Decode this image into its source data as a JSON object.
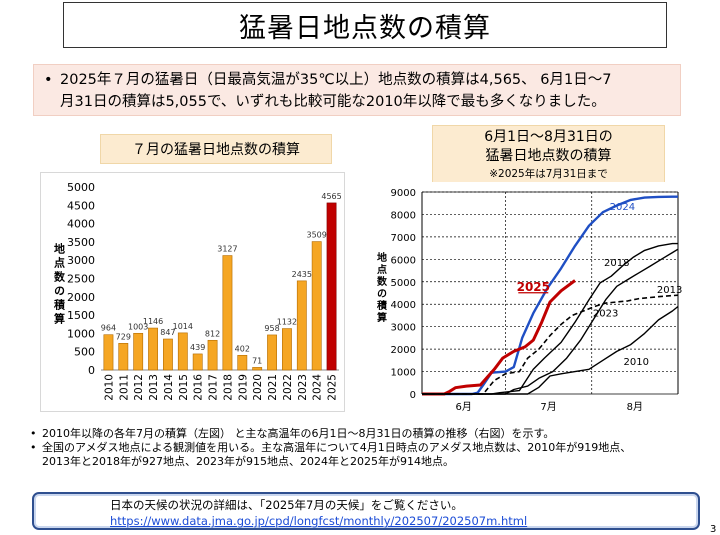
{
  "title": "猛暑日地点数の積算",
  "summary": {
    "bullet": "•",
    "line1": "2025年７月の猛暑日（日最高気温が35℃以上）地点数の積算は4,565、 6月1日～7",
    "line2": "月31日の積算は5,055で、いずれも比較可能な2010年以降で最も多くなりました。"
  },
  "left_title": "７月の猛暑日地点数の積算",
  "right_title": {
    "line1": "6月1日～8月31日の",
    "line2": "猛暑日地点数の積算",
    "note": "※2025年は7月31日まで"
  },
  "colors": {
    "bar": "#f5a623",
    "bar_2025": "#c00000",
    "line_2024": "#1f4fc4",
    "line_2025": "#c00000",
    "line_other": "#000000"
  },
  "chart_data": [
    {
      "type": "bar",
      "ylabel": "地点数の積算",
      "ylim": [
        0,
        5000
      ],
      "yticks": [
        "0",
        "500",
        "1000",
        "1500",
        "2000",
        "2500",
        "3000",
        "3500",
        "4000",
        "4500",
        "5000"
      ],
      "categories": [
        "2010",
        "2011",
        "2012",
        "2013",
        "2014",
        "2015",
        "2016",
        "2017",
        "2018",
        "2019",
        "2020",
        "2021",
        "2022",
        "2023",
        "2024",
        "2025"
      ],
      "values": [
        964,
        729,
        1003,
        1146,
        847,
        1014,
        439,
        812,
        3127,
        402,
        71,
        958,
        1132,
        2435,
        3509,
        4565
      ],
      "labels": [
        "964",
        "729",
        "1003",
        "1146",
        "847",
        "1014",
        "439",
        "812",
        "3127",
        "402",
        "71",
        "958",
        "1132",
        "2435",
        "3509",
        "4565"
      ]
    },
    {
      "type": "line",
      "ylabel": "地点数の積算",
      "ylim": [
        0,
        9000
      ],
      "yticks": [
        "0",
        "1000",
        "2000",
        "3000",
        "4000",
        "5000",
        "6000",
        "7000",
        "8000",
        "9000"
      ],
      "xticks": [
        "6月",
        "7月",
        "8月"
      ],
      "xlim": [
        0,
        92
      ],
      "series": [
        {
          "name": "2024",
          "style": "solid-blue",
          "points": [
            [
              0,
              0
            ],
            [
              18,
              0
            ],
            [
              20,
              60
            ],
            [
              22,
              400
            ],
            [
              25,
              950
            ],
            [
              30,
              1000
            ],
            [
              33,
              1200
            ],
            [
              36,
              2500
            ],
            [
              40,
              3600
            ],
            [
              45,
              4700
            ],
            [
              50,
              5600
            ],
            [
              55,
              6600
            ],
            [
              60,
              7500
            ],
            [
              65,
              8100
            ],
            [
              70,
              8400
            ],
            [
              75,
              8650
            ],
            [
              80,
              8750
            ],
            [
              85,
              8780
            ],
            [
              90,
              8790
            ],
            [
              92,
              8790
            ]
          ]
        },
        {
          "name": "2025",
          "style": "thick-red",
          "points": [
            [
              0,
              0
            ],
            [
              8,
              0
            ],
            [
              10,
              120
            ],
            [
              12,
              280
            ],
            [
              16,
              350
            ],
            [
              21,
              400
            ],
            [
              26,
              1100
            ],
            [
              29,
              1600
            ],
            [
              33,
              1900
            ],
            [
              37,
              2100
            ],
            [
              40,
              2400
            ],
            [
              43,
              3200
            ],
            [
              46,
              4100
            ],
            [
              50,
              4600
            ],
            [
              55,
              5055
            ]
          ]
        },
        {
          "name": "2018",
          "style": "solid-black",
          "points": [
            [
              0,
              0
            ],
            [
              25,
              0
            ],
            [
              28,
              60
            ],
            [
              35,
              150
            ],
            [
              40,
              1100
            ],
            [
              44,
              1600
            ],
            [
              50,
              2300
            ],
            [
              55,
              3200
            ],
            [
              60,
              4200
            ],
            [
              64,
              4950
            ],
            [
              68,
              5250
            ],
            [
              72,
              5700
            ],
            [
              76,
              6100
            ],
            [
              80,
              6400
            ],
            [
              85,
              6600
            ],
            [
              90,
              6700
            ],
            [
              92,
              6700
            ]
          ]
        },
        {
          "name": "2013",
          "style": "dashed-black",
          "points": [
            [
              0,
              0
            ],
            [
              22,
              0
            ],
            [
              26,
              600
            ],
            [
              30,
              900
            ],
            [
              35,
              1000
            ],
            [
              38,
              1600
            ],
            [
              42,
              2000
            ],
            [
              46,
              2600
            ],
            [
              50,
              3100
            ],
            [
              54,
              3500
            ],
            [
              58,
              3700
            ],
            [
              62,
              3900
            ],
            [
              66,
              4050
            ],
            [
              70,
              4100
            ],
            [
              74,
              4150
            ],
            [
              78,
              4250
            ],
            [
              82,
              4300
            ],
            [
              86,
              4350
            ],
            [
              92,
              4400
            ]
          ]
        },
        {
          "name": "2023",
          "style": "solid-black",
          "points": [
            [
              0,
              0
            ],
            [
              30,
              0
            ],
            [
              33,
              200
            ],
            [
              38,
              350
            ],
            [
              42,
              700
            ],
            [
              47,
              1000
            ],
            [
              52,
              1600
            ],
            [
              57,
              2400
            ],
            [
              62,
              3400
            ],
            [
              66,
              4200
            ],
            [
              70,
              4800
            ],
            [
              74,
              5100
            ],
            [
              78,
              5400
            ],
            [
              82,
              5700
            ],
            [
              86,
              6000
            ],
            [
              90,
              6300
            ],
            [
              92,
              6450
            ]
          ]
        },
        {
          "name": "2010",
          "style": "solid-black",
          "points": [
            [
              0,
              0
            ],
            [
              38,
              0
            ],
            [
              42,
              300
            ],
            [
              46,
              800
            ],
            [
              50,
              900
            ],
            [
              55,
              1000
            ],
            [
              60,
              1100
            ],
            [
              65,
              1500
            ],
            [
              70,
              1900
            ],
            [
              75,
              2200
            ],
            [
              80,
              2700
            ],
            [
              85,
              3300
            ],
            [
              90,
              3700
            ],
            [
              92,
              3900
            ]
          ]
        }
      ],
      "series_label_color": {
        "2024": "#1f4fc4",
        "2025": "#c00000"
      }
    }
  ],
  "notes": [
    "2010年以降の各年7月の積算（左図） と主な高温年の6月1日～8月31日の積算の推移（右図）を示す。",
    "全国のアメダス地点による観測値を用いる。主な高温年について4月1日時点のアメダス地点数は、2010年が919地点、",
    "2013年と2018年が927地点、2023年が915地点、2024年と2025年が914地点。"
  ],
  "note_bullet": "•",
  "link_box": {
    "text": "日本の天候の状況の詳細は、「2025年7月の天候」をご覧ください。",
    "url": "https://www.data.jma.go.jp/cpd/longfcst/monthly/202507/202507m.html"
  },
  "page_number": "3"
}
